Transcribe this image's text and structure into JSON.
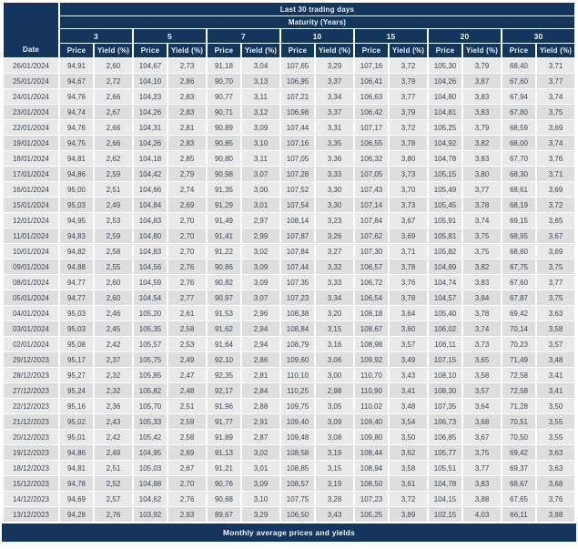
{
  "chart_data": {
    "type": "table",
    "title": "Last 30 trading days",
    "subtitle": "Maturity (Years)",
    "date_header": "Date",
    "maturities": [
      "3",
      "5",
      "7",
      "10",
      "15",
      "20",
      "30"
    ],
    "sub_headers": [
      "Price",
      "Yield (%)"
    ],
    "footer": "Monthly average prices and yields",
    "rows": [
      {
        "date": "26/01/2024",
        "values": [
          "94,91",
          "2,60",
          "104,67",
          "2,73",
          "91,18",
          "3,04",
          "107,65",
          "3,29",
          "107,16",
          "3,72",
          "105,30",
          "3,79",
          "68,40",
          "3,71"
        ]
      },
      {
        "date": "25/01/2024",
        "values": [
          "94,67",
          "2,72",
          "104,10",
          "2,86",
          "90,70",
          "3,13",
          "106,95",
          "3,37",
          "106,41",
          "3,79",
          "104,26",
          "3,87",
          "67,60",
          "3,77"
        ]
      },
      {
        "date": "24/01/2024",
        "values": [
          "94,76",
          "2,66",
          "104,23",
          "2,83",
          "90,77",
          "3,11",
          "107,21",
          "3,34",
          "106,63",
          "3,77",
          "104,80",
          "3,83",
          "67,94",
          "3,74"
        ]
      },
      {
        "date": "23/01/2024",
        "values": [
          "94,74",
          "2,67",
          "104,26",
          "2,83",
          "90,71",
          "3,12",
          "106,98",
          "3,37",
          "106,42",
          "3,79",
          "104,81",
          "3,83",
          "67,80",
          "3,75"
        ]
      },
      {
        "date": "22/01/2024",
        "values": [
          "94,76",
          "2,66",
          "104,31",
          "2,81",
          "90,89",
          "3,09",
          "107,44",
          "3,31",
          "107,17",
          "3,72",
          "105,25",
          "3,79",
          "68,59",
          "3,69"
        ]
      },
      {
        "date": "19/01/2024",
        "values": [
          "94,75",
          "2,66",
          "104,26",
          "2,83",
          "90,85",
          "3,10",
          "107,16",
          "3,35",
          "106,55",
          "3,78",
          "104,92",
          "3,82",
          "68,00",
          "3,74"
        ]
      },
      {
        "date": "18/01/2024",
        "values": [
          "94,81",
          "2,62",
          "104,18",
          "2,85",
          "90,80",
          "3,11",
          "107,05",
          "3,36",
          "106,32",
          "3,80",
          "104,78",
          "3,83",
          "67,70",
          "3,76"
        ]
      },
      {
        "date": "17/01/2024",
        "values": [
          "94,86",
          "2,59",
          "104,42",
          "2,79",
          "90,98",
          "3,07",
          "107,28",
          "3,33",
          "107,05",
          "3,73",
          "105,15",
          "3,80",
          "68,30",
          "3,71"
        ]
      },
      {
        "date": "16/01/2024",
        "values": [
          "95,00",
          "2,51",
          "104,66",
          "2,74",
          "91,35",
          "3,00",
          "107,52",
          "3,30",
          "107,43",
          "3,70",
          "105,49",
          "3,77",
          "68,61",
          "3,69"
        ]
      },
      {
        "date": "15/01/2024",
        "values": [
          "95,03",
          "2,49",
          "104,84",
          "2,69",
          "91,29",
          "3,01",
          "107,54",
          "3,30",
          "107,14",
          "3,73",
          "105,45",
          "3,78",
          "68,19",
          "3,72"
        ]
      },
      {
        "date": "12/01/2024",
        "values": [
          "94,95",
          "2,53",
          "104,83",
          "2,70",
          "91,49",
          "2,97",
          "108,14",
          "3,23",
          "107,84",
          "3,67",
          "105,91",
          "3,74",
          "69,15",
          "3,65"
        ]
      },
      {
        "date": "11/01/2024",
        "values": [
          "94,83",
          "2,59",
          "104,80",
          "2,70",
          "91,41",
          "2,99",
          "107,87",
          "3,26",
          "107,62",
          "3,69",
          "105,81",
          "3,75",
          "68,95",
          "3,67"
        ]
      },
      {
        "date": "10/01/2024",
        "values": [
          "94,82",
          "2,58",
          "104,83",
          "2,70",
          "91,22",
          "3,02",
          "107,84",
          "3,27",
          "107,30",
          "3,71",
          "105,82",
          "3,75",
          "68,60",
          "3,69"
        ]
      },
      {
        "date": "09/01/2024",
        "values": [
          "94,88",
          "2,55",
          "104,56",
          "2,76",
          "90,86",
          "3,09",
          "107,44",
          "3,32",
          "106,57",
          "3,78",
          "104,89",
          "3,82",
          "67,75",
          "3,75"
        ]
      },
      {
        "date": "08/01/2024",
        "values": [
          "94,77",
          "2,60",
          "104,59",
          "2,76",
          "90,82",
          "3,09",
          "107,35",
          "3,33",
          "106,72",
          "3,76",
          "104,74",
          "3,83",
          "67,60",
          "3,77"
        ]
      },
      {
        "date": "05/01/2024",
        "values": [
          "94,77",
          "2,60",
          "104,54",
          "2,77",
          "90,97",
          "3,07",
          "107,23",
          "3,34",
          "106,54",
          "3,78",
          "104,57",
          "3,84",
          "67,87",
          "3,75"
        ]
      },
      {
        "date": "04/01/2024",
        "values": [
          "95,03",
          "2,46",
          "105,20",
          "2,61",
          "91,53",
          "2,96",
          "108,38",
          "3,20",
          "108,18",
          "3,64",
          "105,40",
          "3,78",
          "69,42",
          "3,63"
        ]
      },
      {
        "date": "03/01/2024",
        "values": [
          "95,03",
          "2,45",
          "105,35",
          "2,58",
          "91,62",
          "2,94",
          "108,84",
          "3,15",
          "108,67",
          "3,60",
          "106,02",
          "3,74",
          "70,14",
          "3,58"
        ]
      },
      {
        "date": "02/01/2024",
        "values": [
          "95,08",
          "2,42",
          "105,57",
          "2,53",
          "91,64",
          "2,94",
          "108,79",
          "3,16",
          "108,98",
          "3,57",
          "106,11",
          "3,73",
          "70,23",
          "3,57"
        ]
      },
      {
        "date": "29/12/2023",
        "values": [
          "95,17",
          "2,37",
          "105,75",
          "2,49",
          "92,10",
          "2,86",
          "109,60",
          "3,06",
          "109,92",
          "3,49",
          "107,15",
          "3,65",
          "71,49",
          "3,48"
        ]
      },
      {
        "date": "28/12/2023",
        "values": [
          "95,27",
          "2,32",
          "105,85",
          "2,47",
          "92,35",
          "2,81",
          "110,10",
          "3,00",
          "110,70",
          "3,43",
          "108,10",
          "3,58",
          "72,58",
          "3,41"
        ]
      },
      {
        "date": "27/12/2023",
        "values": [
          "95,24",
          "2,32",
          "105,82",
          "2,48",
          "92,17",
          "2,84",
          "110,25",
          "2,98",
          "110,90",
          "3,41",
          "108,30",
          "3,57",
          "72,58",
          "3,41"
        ]
      },
      {
        "date": "22/12/2023",
        "values": [
          "95,16",
          "2,36",
          "105,70",
          "2,51",
          "91,96",
          "2,88",
          "109,75",
          "3,05",
          "110,02",
          "3,48",
          "107,35",
          "3,64",
          "71,28",
          "3,50"
        ]
      },
      {
        "date": "21/12/2023",
        "values": [
          "95,02",
          "2,43",
          "105,33",
          "2,59",
          "91,77",
          "2,91",
          "109,40",
          "3,09",
          "109,40",
          "3,54",
          "106,73",
          "3,68",
          "70,51",
          "3,55"
        ]
      },
      {
        "date": "20/12/2023",
        "values": [
          "95,01",
          "2,42",
          "105,42",
          "2,58",
          "91,89",
          "2,87",
          "109,48",
          "3,08",
          "109,80",
          "3,50",
          "106,85",
          "3,67",
          "70,50",
          "3,55"
        ]
      },
      {
        "date": "19/12/2023",
        "values": [
          "94,86",
          "2,49",
          "104,95",
          "2,69",
          "91,13",
          "3,02",
          "108,58",
          "3,19",
          "108,44",
          "3,62",
          "105,77",
          "3,75",
          "69,42",
          "3,63"
        ]
      },
      {
        "date": "18/12/2023",
        "values": [
          "94,81",
          "2,51",
          "105,03",
          "2,67",
          "91,21",
          "3,01",
          "108,85",
          "3,15",
          "108,94",
          "3,58",
          "105,51",
          "3,77",
          "69,37",
          "3,63"
        ]
      },
      {
        "date": "15/12/2023",
        "values": [
          "94,78",
          "2,52",
          "104,88",
          "2,70",
          "90,76",
          "3,09",
          "108,57",
          "3,19",
          "108,50",
          "3,61",
          "104,78",
          "3,83",
          "68,67",
          "3,68"
        ]
      },
      {
        "date": "14/12/2023",
        "values": [
          "94,69",
          "2,57",
          "104,62",
          "2,76",
          "90,68",
          "3,10",
          "107,75",
          "3,28",
          "107,23",
          "3,72",
          "104,15",
          "3,88",
          "67,65",
          "3,76"
        ]
      },
      {
        "date": "13/12/2023",
        "values": [
          "94,28",
          "2,76",
          "103,92",
          "2,93",
          "89,67",
          "3,29",
          "106,50",
          "3,43",
          "105,25",
          "3,89",
          "102,15",
          "4,03",
          "66,11",
          "3,88"
        ]
      }
    ]
  },
  "colors": {
    "navy": "#14355c",
    "row_light": "#e9e9e9",
    "row_dark": "#dedede",
    "body_text": "#3c4756",
    "header_text": "#eef2f8"
  }
}
